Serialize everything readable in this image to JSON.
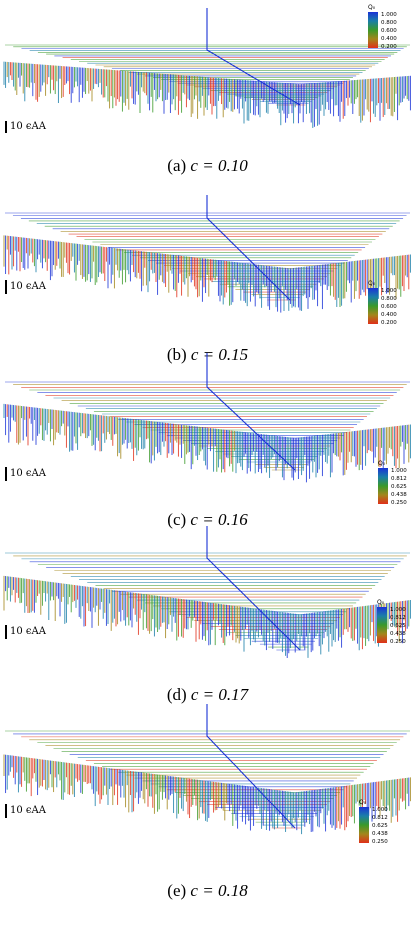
{
  "panels": [
    {
      "caption_prefix": "(a)",
      "caption_math": "c = 0.10",
      "scale_label": "10 ϵAA",
      "legend": {
        "title": "Q₀",
        "ticks": [
          "1.000",
          "0.800",
          "0.600",
          "0.400",
          "0.200"
        ]
      }
    },
    {
      "caption_prefix": "(b)",
      "caption_math": "c = 0.15",
      "scale_label": "10 ϵAA",
      "legend": {
        "title": "Q₀",
        "ticks": [
          "1.000",
          "0.800",
          "0.600",
          "0.400",
          "0.200"
        ]
      }
    },
    {
      "caption_prefix": "(c)",
      "caption_math": "c = 0.16",
      "scale_label": "10 ϵAA",
      "legend": {
        "title": "Q₀",
        "ticks": [
          "1.000",
          "0.812",
          "0.625",
          "0.438",
          "0.250"
        ]
      }
    },
    {
      "caption_prefix": "(d)",
      "caption_math": "c = 0.17",
      "scale_label": "10 ϵAA",
      "legend": {
        "title": "Q₀",
        "ticks": [
          "1.000",
          "0.812",
          "0.625",
          "0.438",
          "0.250"
        ]
      }
    },
    {
      "caption_prefix": "(e)",
      "caption_math": "c = 0.18",
      "scale_label": "10 ϵAA",
      "legend": {
        "title": "Q₀",
        "ticks": [
          "1.000",
          "0.812",
          "0.625",
          "0.438",
          "0.250"
        ]
      }
    }
  ]
}
